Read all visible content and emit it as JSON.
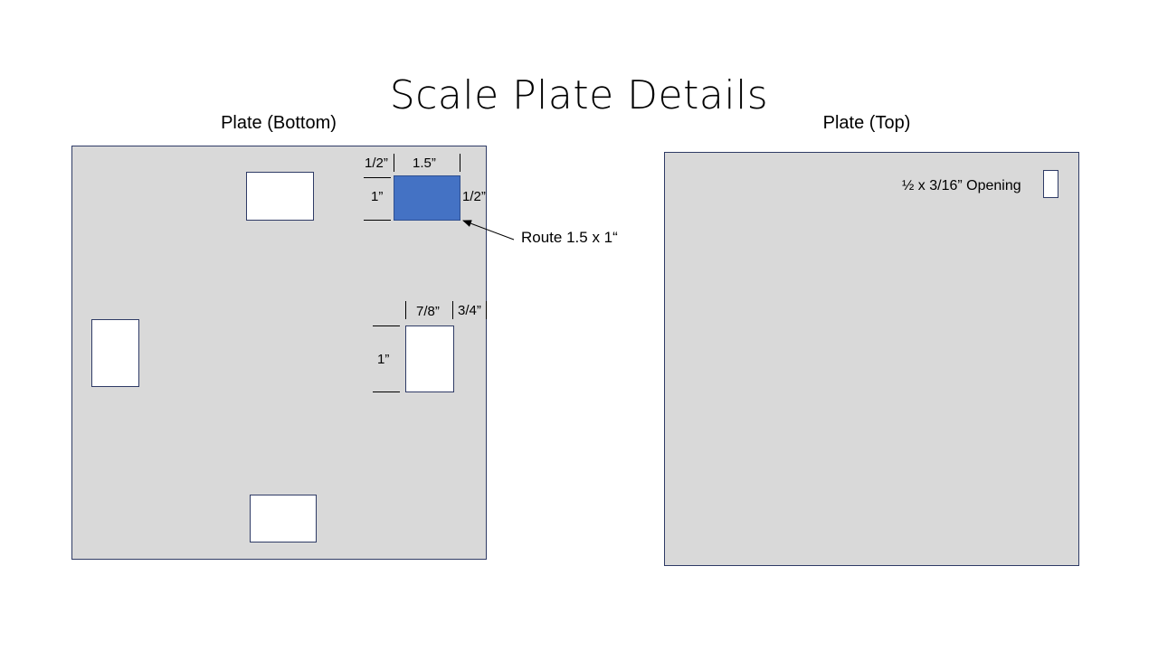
{
  "title": "Scale Plate Details",
  "bottom_plate": {
    "label": "Plate (Bottom)",
    "dims": {
      "top_offset": "1/2”",
      "route_width": "1.5”",
      "route_height": "1”",
      "right_offset": "1/2”",
      "slot_width": "7/8”",
      "slot_right_offset": "3/4”",
      "slot_height": "1”"
    },
    "route_note": "Route 1.5 x 1“"
  },
  "top_plate": {
    "label": "Plate (Top)",
    "opening_note": "½ x 3/16” Opening"
  },
  "colors": {
    "plate_fill": "#d9d9d9",
    "outline": "#2f3b66",
    "route_fill": "#4472c4"
  }
}
